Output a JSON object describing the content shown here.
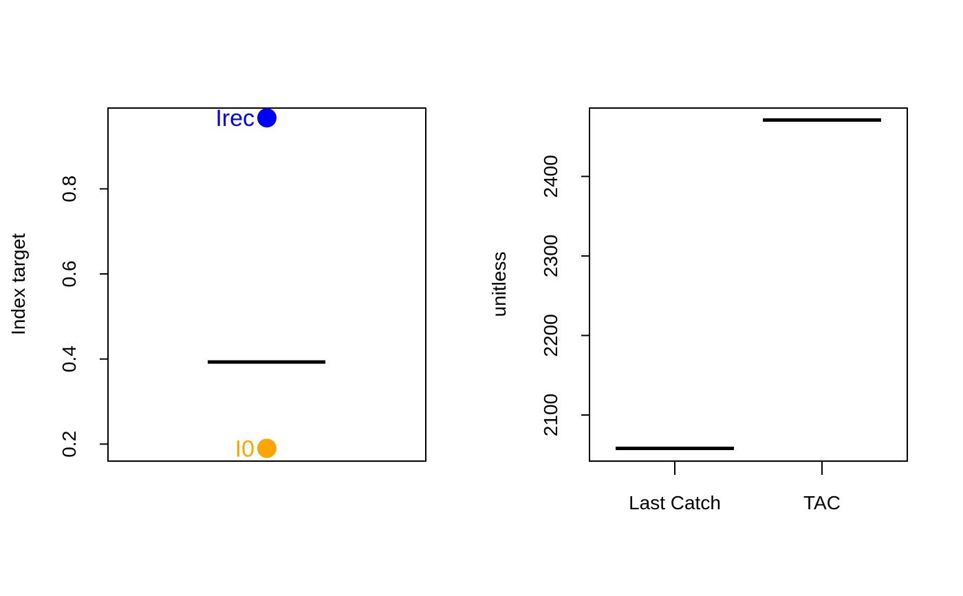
{
  "chart_data": [
    {
      "type": "scatter",
      "title": "",
      "xlabel": "",
      "ylabel": "Index target",
      "ylim": [
        0.16,
        0.99
      ],
      "yticks": [
        "0.2",
        "0.4",
        "0.6",
        "0.8"
      ],
      "yticks_values": [
        0.2,
        0.4,
        0.6,
        0.8
      ],
      "grid": false,
      "target_line": {
        "value": 0.393
      },
      "points": [
        {
          "label": "Irec",
          "value": 0.967,
          "color": "#0000ff"
        },
        {
          "label": "I0",
          "value": 0.19,
          "color": "#ffa500"
        }
      ]
    },
    {
      "type": "bar",
      "title": "",
      "xlabel": "",
      "ylabel": "unitless",
      "ylim": [
        2042,
        2486
      ],
      "yticks": [
        "2100",
        "2200",
        "2300",
        "2400"
      ],
      "yticks_values": [
        2100,
        2200,
        2300,
        2400
      ],
      "grid": false,
      "categories": [
        "Last Catch",
        "TAC"
      ],
      "values": [
        2058,
        2471
      ],
      "color": "#000000"
    }
  ]
}
